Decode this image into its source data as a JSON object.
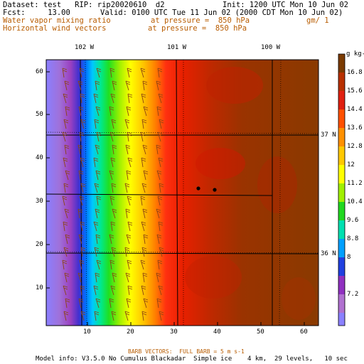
{
  "header": {
    "dataset": "Dataset: test   RIP: rip20020610  d2",
    "init": "Init: 1200 UTC Mon 10 Jun 02",
    "fcst": "Fcst:     13.00",
    "valid": "Valid: 0100 UTC Tue 11 Jun 02 (2000 CDT Mon 10 Jun 02)",
    "field1_name": "Water vapor mixing ratio",
    "field1_level": "at pressure =  850 hPa",
    "field1_units": "gm/ 1",
    "field2_name": "Horizontal wind vectors",
    "field2_level": "at pressure =  850 hPa"
  },
  "map": {
    "longitude_labels": [
      "102 W",
      "101 W",
      "100 W"
    ],
    "latitude_labels": [
      "37 N",
      "36 N"
    ],
    "x_ticks": [
      "10",
      "20",
      "30",
      "40",
      "50",
      "60"
    ],
    "y_ticks": [
      "60",
      "50",
      "40",
      "30",
      "20",
      "10"
    ],
    "stations": 2
  },
  "colorbar": {
    "units": "g kg-1",
    "labels": [
      "16.8",
      "15.6",
      "14.4",
      "13.6",
      "12.8",
      "12",
      "11.2",
      "10.4",
      "9.6",
      "8.8",
      "8",
      "7.2"
    ]
  },
  "footer": {
    "barb_label": "BARB VECTORS:  FULL BARB = 5 m s-1",
    "model_info": "Model info: V3.5.0 No Cumulus Blackadar  Simple ice    4 km,  29 levels,   10 sec"
  },
  "colors": {
    "text_orange": "#b85c00",
    "barb": "#8b4513",
    "moist_max": "#7a3a00",
    "dry_min": "#8080ff"
  }
}
